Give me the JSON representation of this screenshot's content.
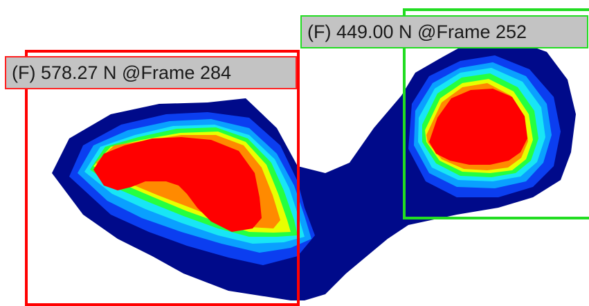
{
  "pressure_map": {
    "colors": {
      "level_1": "#000a8a",
      "level_2": "#0b3ef0",
      "level_3": "#0aa0ff",
      "level_4": "#18e6f5",
      "level_5": "#25ff40",
      "level_6": "#e8ff00",
      "level_7": "#ff8a00",
      "level_8": "#ff0000"
    },
    "regions": [
      {
        "label": "(F) 578.27 N @Frame 284",
        "box_color": "#ff0000",
        "label_border_color": "#ff2020"
      },
      {
        "label": "(F) 449.00 N @Frame 252",
        "box_color": "#22dd22",
        "label_border_color": "#22dd22"
      }
    ],
    "label_background": "#c3c3c3"
  }
}
